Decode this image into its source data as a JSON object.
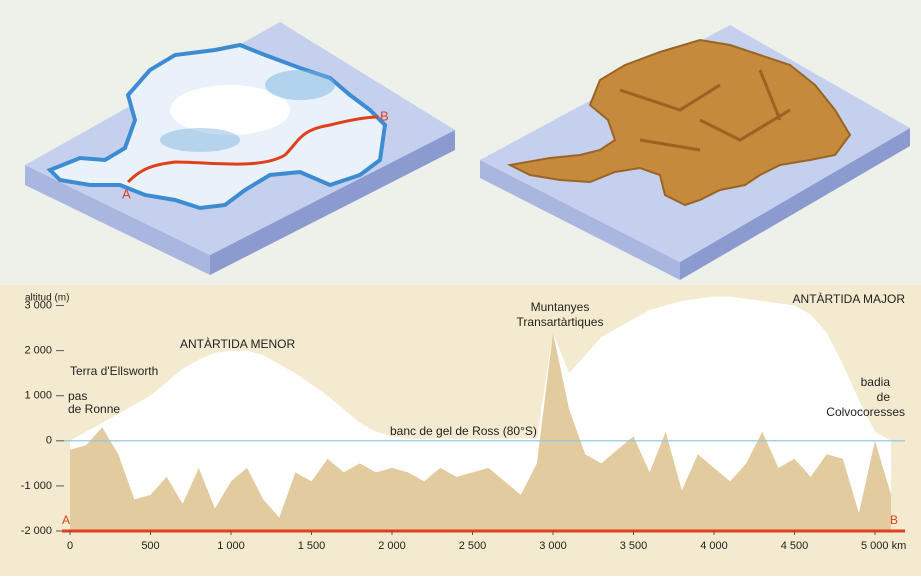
{
  "chart_data": {
    "type": "area",
    "y_label": "altitud (m)",
    "x": [
      0,
      100,
      200,
      300,
      400,
      500,
      600,
      700,
      800,
      900,
      1000,
      1100,
      1200,
      1300,
      1400,
      1500,
      1600,
      1700,
      1800,
      1900,
      2000,
      2100,
      2200,
      2300,
      2400,
      2500,
      2600,
      2700,
      2800,
      2900,
      3000,
      3100,
      3200,
      3300,
      3400,
      3500,
      3600,
      3700,
      3800,
      3900,
      4000,
      4100,
      4200,
      4300,
      4400,
      4500,
      4600,
      4700,
      4800,
      4900,
      5000,
      5100
    ],
    "series": [
      {
        "color": "#ffffff",
        "values": [
          0,
          200,
          400,
          600,
          800,
          1000,
          1300,
          1600,
          1800,
          1950,
          2000,
          2000,
          1900,
          1700,
          1500,
          1250,
          1000,
          700,
          400,
          200,
          100,
          50,
          50,
          50,
          50,
          50,
          50,
          50,
          50,
          50,
          2400,
          1500,
          1900,
          2300,
          2500,
          2700,
          2900,
          3000,
          3100,
          3150,
          3200,
          3200,
          3150,
          3100,
          3050,
          3000,
          2800,
          2400,
          1700,
          900,
          200,
          0
        ]
      },
      {
        "color": "#e2cc9f",
        "values": [
          -200,
          -100,
          300,
          -300,
          -1300,
          -1200,
          -800,
          -1400,
          -600,
          -1500,
          -900,
          -600,
          -1300,
          -1700,
          -700,
          -900,
          -400,
          -700,
          -500,
          -700,
          -600,
          -700,
          -900,
          -600,
          -800,
          -700,
          -600,
          -900,
          -1200,
          -500,
          2400,
          700,
          -300,
          -500,
          -200,
          100,
          -700,
          200,
          -1100,
          -300,
          -600,
          -900,
          -500,
          200,
          -600,
          -400,
          -800,
          -300,
          -400,
          -1600,
          0,
          -1200
        ]
      }
    ],
    "xlim": [
      -50,
      5180
    ],
    "ylim": [
      -2000,
      3300
    ],
    "xticks": [
      0,
      500,
      {
        "value": 1000,
        "label": "1 000"
      },
      {
        "value": 1500,
        "label": "1 500"
      },
      {
        "value": 2000,
        "label": "2 000"
      },
      {
        "value": 2500,
        "label": "2 500"
      },
      {
        "value": 3000,
        "label": "3 000"
      },
      {
        "value": 3500,
        "label": "3 500"
      },
      {
        "value": 4000,
        "label": "4 000"
      },
      {
        "value": 4500,
        "label": "4 500"
      },
      {
        "value": 5000,
        "label": "5 000 km"
      }
    ],
    "yticks": [
      {
        "value": 3000,
        "label": "3 000"
      },
      {
        "value": 2000,
        "label": "2 000"
      },
      {
        "value": 1000,
        "label": "1 000"
      },
      0,
      {
        "value": -1000,
        "label": "-1 000"
      },
      {
        "value": -2000,
        "label": "-2 000"
      }
    ],
    "sea_color": "#8cc4dc",
    "route_color": "#e0401c",
    "endpoints": [
      "A",
      "B"
    ],
    "annotations": [
      "ANTÀRTIDA MENOR",
      "Terra d'Ellsworth",
      "pas",
      "de Ronne",
      "banc de gel de Ross (80°S)",
      "Muntanyes",
      "Transartàrtiques",
      "ANTÀRTIDA MAJOR",
      "badia",
      "de",
      "Colvocoresses"
    ]
  }
}
